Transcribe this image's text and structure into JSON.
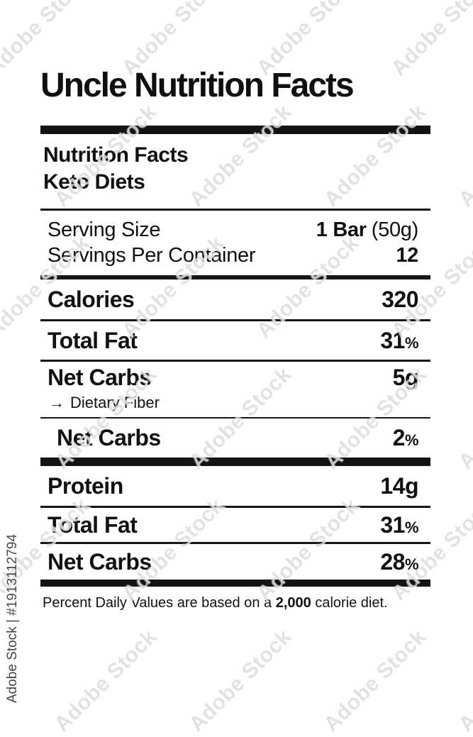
{
  "page": {
    "title": "Uncle Nutrition Facts",
    "watermark_text": "Adobe Stock",
    "credit": "Adobe Stock | #1913112794"
  },
  "label": {
    "heading": "Nutrition Facts",
    "subheading": "Keto Diets",
    "serving": {
      "size_label": "Serving Size",
      "size_value_bold": "1 Bar",
      "size_value_note": "(50g)",
      "per_container_label": "Servings Per Container",
      "per_container_value": "12"
    },
    "rows": {
      "calories": {
        "name": "Calories",
        "value": "320",
        "unit": ""
      },
      "total_fat_1": {
        "name": "Total Fat",
        "value": "31",
        "unit": "%"
      },
      "net_carbs_1": {
        "name": "Net Carbs",
        "value": "5g",
        "unit": ""
      },
      "dietary_fiber": {
        "arrow": "→",
        "name": "Dietary Fiber"
      },
      "net_carbs_2": {
        "name": "Net Carbs",
        "value": "2",
        "unit": "%"
      },
      "protein": {
        "name": "Protein",
        "value": "14g",
        "unit": ""
      },
      "total_fat_2": {
        "name": "Total Fat",
        "value": "31",
        "unit": "%"
      },
      "net_carbs_3": {
        "name": "Net Carbs",
        "value": "28",
        "unit": "%"
      }
    },
    "footnote": {
      "prefix": "Percent Daily Values are based on a ",
      "bold": "2,000",
      "suffix": " calorie diet."
    }
  }
}
